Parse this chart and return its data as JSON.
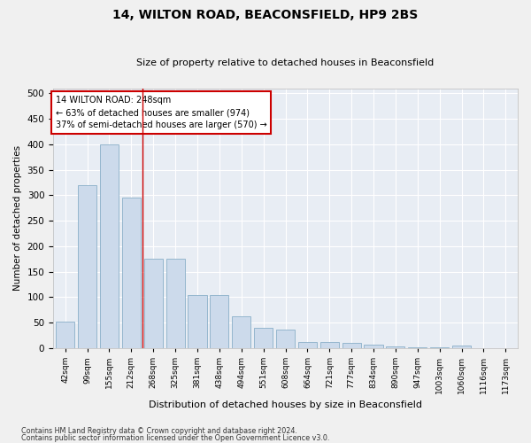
{
  "title": "14, WILTON ROAD, BEACONSFIELD, HP9 2BS",
  "subtitle": "Size of property relative to detached houses in Beaconsfield",
  "xlabel": "Distribution of detached houses by size in Beaconsfield",
  "ylabel": "Number of detached properties",
  "categories": [
    "42sqm",
    "99sqm",
    "155sqm",
    "212sqm",
    "268sqm",
    "325sqm",
    "381sqm",
    "438sqm",
    "494sqm",
    "551sqm",
    "608sqm",
    "664sqm",
    "721sqm",
    "777sqm",
    "834sqm",
    "890sqm",
    "947sqm",
    "1003sqm",
    "1060sqm",
    "1116sqm",
    "1173sqm"
  ],
  "values": [
    53,
    320,
    400,
    295,
    175,
    175,
    105,
    105,
    63,
    40,
    37,
    12,
    13,
    10,
    7,
    4,
    2,
    1,
    5,
    0,
    0
  ],
  "bar_color": "#ccdaeb",
  "bar_edge_color": "#8aafc8",
  "vline_x": 3.5,
  "vline_color": "#cc0000",
  "annotation_text": "14 WILTON ROAD: 248sqm\n← 63% of detached houses are smaller (974)\n37% of semi-detached houses are larger (570) →",
  "annotation_box_color": "#ffffff",
  "annotation_box_edge": "#cc0000",
  "ylim": [
    0,
    510
  ],
  "yticks": [
    0,
    50,
    100,
    150,
    200,
    250,
    300,
    350,
    400,
    450,
    500
  ],
  "background_color": "#e8edf4",
  "fig_bg_color": "#f0f0f0",
  "footer1": "Contains HM Land Registry data © Crown copyright and database right 2024.",
  "footer2": "Contains public sector information licensed under the Open Government Licence v3.0."
}
